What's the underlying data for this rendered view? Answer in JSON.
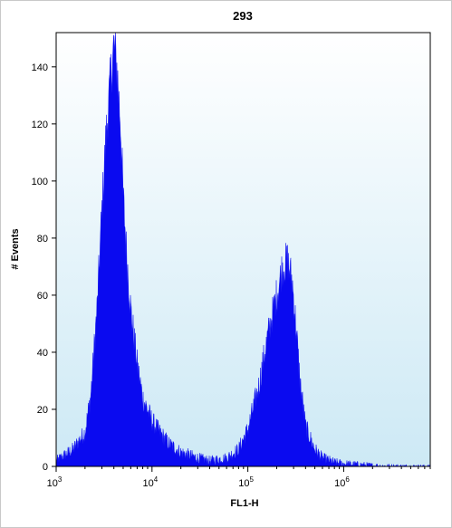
{
  "chart_data": {
    "type": "area",
    "title": "293",
    "xlabel": "FL1-H",
    "ylabel": "# Events",
    "x_scale": "log",
    "xlim": [
      1000,
      8000000
    ],
    "ylim": [
      0,
      152
    ],
    "x_ticks": [
      {
        "value": 1000,
        "base": "10",
        "exp": "3"
      },
      {
        "value": 10000,
        "base": "10",
        "exp": "4"
      },
      {
        "value": 100000,
        "base": "10",
        "exp": "5"
      },
      {
        "value": 1000000,
        "base": "10",
        "exp": "6"
      }
    ],
    "y_ticks": [
      0,
      20,
      40,
      60,
      80,
      100,
      120,
      140
    ],
    "grid": false,
    "colors": {
      "fill": "#0a0af0",
      "plot_bg_top": "#ffffff",
      "plot_bg_bottom": "#cde9f5",
      "axis": "#000000"
    },
    "series": [
      {
        "x": [
          1000,
          1500,
          2000,
          2300,
          2700,
          3000,
          3300,
          3700,
          4000,
          4300,
          4700,
          5000,
          5500,
          6000,
          7000,
          8000,
          10000,
          12000,
          15000,
          20000,
          30000,
          40000,
          60000,
          80000,
          100000,
          130000,
          160000,
          200000,
          230000,
          260000,
          290000,
          320000,
          350000,
          400000,
          500000,
          600000,
          800000,
          1000000,
          1500000,
          2000000,
          3000000,
          8000000
        ],
        "values": [
          2,
          6,
          12,
          25,
          58,
          90,
          115,
          136,
          148,
          140,
          120,
          95,
          72,
          55,
          36,
          24,
          16,
          12,
          8,
          5,
          3,
          2,
          3,
          6,
          13,
          28,
          45,
          60,
          70,
          72,
          65,
          48,
          30,
          14,
          6,
          3,
          1.5,
          1,
          0.6,
          0.3,
          0.1,
          0
        ]
      }
    ]
  }
}
